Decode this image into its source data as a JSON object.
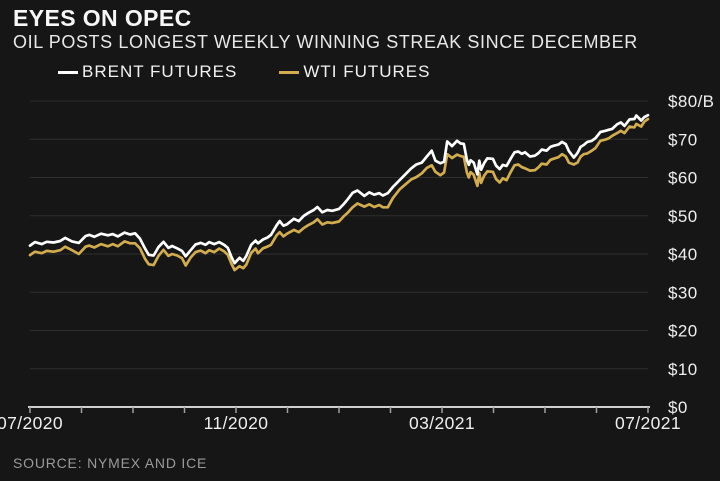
{
  "header": {
    "title": "EYES ON OPEC",
    "subtitle": "OIL POSTS LONGEST WEEKLY WINNING STREAK SINCE DECEMBER"
  },
  "footer": {
    "source": "SOURCE: NYMEX AND ICE"
  },
  "chart_data": {
    "type": "line",
    "title": "EYES ON OPEC",
    "subtitle": "OIL POSTS LONGEST WEEKLY WINNING STREAK SINCE DECEMBER",
    "legend_position": "top-left",
    "grid": "horizontal",
    "colors": {
      "background": "#161616",
      "grid": "#2e2e2e",
      "axis": "#cfcfcf",
      "tick": "#9f9f9f",
      "tick_label": "#efefef"
    },
    "y_axis": {
      "min": 0,
      "max": 80,
      "step": 10,
      "unit": "$/barrel",
      "labels": [
        "$0",
        "$10",
        "$20",
        "$30",
        "$40",
        "$50",
        "$60",
        "$70",
        "$80/B"
      ]
    },
    "x_axis": {
      "range": [
        "07/2020",
        "07/2021"
      ],
      "months": 12,
      "labels": [
        {
          "month_index": 0,
          "text": "07/2020"
        },
        {
          "month_index": 4,
          "text": "11/2020"
        },
        {
          "month_index": 8,
          "text": "03/2021"
        },
        {
          "month_index": 12,
          "text": "07/2021"
        }
      ]
    },
    "x": [
      0,
      0.008,
      0.019,
      0.027,
      0.038,
      0.049,
      0.057,
      0.068,
      0.079,
      0.09,
      0.096,
      0.104,
      0.115,
      0.126,
      0.134,
      0.142,
      0.153,
      0.162,
      0.17,
      0.178,
      0.186,
      0.192,
      0.2,
      0.208,
      0.216,
      0.224,
      0.23,
      0.238,
      0.246,
      0.252,
      0.26,
      0.268,
      0.276,
      0.284,
      0.29,
      0.298,
      0.306,
      0.314,
      0.32,
      0.326,
      0.331,
      0.339,
      0.345,
      0.35,
      0.358,
      0.365,
      0.369,
      0.377,
      0.384,
      0.39,
      0.399,
      0.404,
      0.41,
      0.416,
      0.427,
      0.435,
      0.443,
      0.451,
      0.459,
      0.465,
      0.473,
      0.481,
      0.489,
      0.5,
      0.508,
      0.514,
      0.522,
      0.53,
      0.541,
      0.549,
      0.557,
      0.565,
      0.571,
      0.579,
      0.587,
      0.598,
      0.606,
      0.617,
      0.625,
      0.634,
      0.642,
      0.65,
      0.656,
      0.664,
      0.67,
      0.675,
      0.683,
      0.691,
      0.697,
      0.702,
      0.707,
      0.71,
      0.713,
      0.718,
      0.724,
      0.727,
      0.73,
      0.735,
      0.74,
      0.749,
      0.754,
      0.76,
      0.765,
      0.771,
      0.778,
      0.784,
      0.79,
      0.796,
      0.801,
      0.809,
      0.817,
      0.823,
      0.828,
      0.836,
      0.842,
      0.847,
      0.855,
      0.861,
      0.867,
      0.872,
      0.88,
      0.886,
      0.891,
      0.896,
      0.902,
      0.909,
      0.915,
      0.923,
      0.931,
      0.937,
      0.942,
      0.95,
      0.956,
      0.962,
      0.97,
      0.978,
      0.981,
      0.989,
      0.994,
      1
    ],
    "series": [
      {
        "name": "BRENT FUTURES",
        "color": "#ffffff",
        "values": [
          42.2,
          43.1,
          42.6,
          43.2,
          43,
          43.4,
          44.2,
          43.3,
          42.9,
          44.7,
          45,
          44.5,
          45.3,
          44.9,
          45.2,
          44.6,
          45.6,
          45.1,
          45.4,
          44,
          41.5,
          39.8,
          39.6,
          41.8,
          43.2,
          41.6,
          42.1,
          41.5,
          40.8,
          39.4,
          41,
          42.5,
          42.9,
          42.4,
          43.1,
          42.6,
          43.1,
          42.4,
          41.6,
          39.2,
          37.6,
          39,
          38.2,
          39.5,
          42.4,
          43.5,
          42.8,
          43.8,
          44.3,
          45,
          47.5,
          48.6,
          47.4,
          47.8,
          49.2,
          48.6,
          50,
          50.8,
          51.5,
          52.3,
          50.9,
          51.5,
          51.3,
          51.8,
          53.1,
          54.3,
          56,
          56.6,
          55.2,
          56.1,
          55.5,
          55.9,
          55.3,
          55.9,
          57.5,
          59.3,
          60.6,
          62.4,
          63.4,
          63.9,
          65.5,
          67,
          64.4,
          63.7,
          64.1,
          69.4,
          68.2,
          69.6,
          68.9,
          68.8,
          64.6,
          63.3,
          64.5,
          63.9,
          60.8,
          64.4,
          62,
          63.8,
          65,
          64.9,
          63.1,
          62.2,
          63.3,
          63,
          65,
          66.6,
          66.8,
          66.2,
          66.6,
          65.5,
          65.7,
          66.4,
          67.3,
          67,
          68,
          68.3,
          68.6,
          69.3,
          68.7,
          66.9,
          65.2,
          66.4,
          68,
          68.5,
          69.3,
          69.6,
          70.3,
          71.9,
          72.2,
          72.5,
          72.7,
          73.9,
          74.4,
          73.5,
          75.2,
          75.3,
          76.2,
          74.9,
          75.8,
          76.3
        ]
      },
      {
        "name": "WTI FUTURES",
        "color": "#d2ac4e",
        "values": [
          39.7,
          40.6,
          40.2,
          40.8,
          40.6,
          41,
          41.9,
          41,
          40,
          41.9,
          42.2,
          41.7,
          42.6,
          42,
          42.6,
          42,
          43.3,
          42.8,
          42.8,
          41.5,
          38.8,
          37.3,
          37.1,
          39.5,
          41.1,
          39.5,
          40,
          39.6,
          38.9,
          37,
          39.1,
          40.5,
          40.9,
          40.2,
          41,
          40.5,
          41.4,
          40.7,
          39.8,
          37.4,
          35.8,
          36.8,
          36.3,
          37.2,
          40.3,
          41.4,
          40.2,
          41.5,
          41.9,
          42.4,
          44.9,
          45.7,
          44.6,
          45.3,
          46.3,
          45.7,
          46.8,
          47.6,
          48.3,
          49.1,
          47.7,
          48.3,
          48.1,
          48.5,
          49.9,
          50.8,
          52.2,
          53.2,
          52.4,
          53,
          52.3,
          52.8,
          52.2,
          52.2,
          54.6,
          56.9,
          58,
          59.5,
          60.1,
          61.1,
          62.5,
          63.2,
          61.5,
          60.6,
          61.3,
          66.1,
          65.1,
          66,
          65.6,
          65.4,
          61.3,
          60,
          61.4,
          60.7,
          57.8,
          61.2,
          58.6,
          60.5,
          61.6,
          61.5,
          59.6,
          58.7,
          59.8,
          59.3,
          61.5,
          63.2,
          63.4,
          62.7,
          62.4,
          61.8,
          61.9,
          62.7,
          63.6,
          63.4,
          64.6,
          64.9,
          65.3,
          66.1,
          65.5,
          63.9,
          63.4,
          63.9,
          65.4,
          66.1,
          66.3,
          67,
          67.7,
          69.6,
          69.9,
          70.3,
          70.9,
          71.6,
          72.2,
          71.6,
          73.3,
          73.1,
          74,
          73.3,
          74.6,
          75.3
        ]
      }
    ]
  }
}
